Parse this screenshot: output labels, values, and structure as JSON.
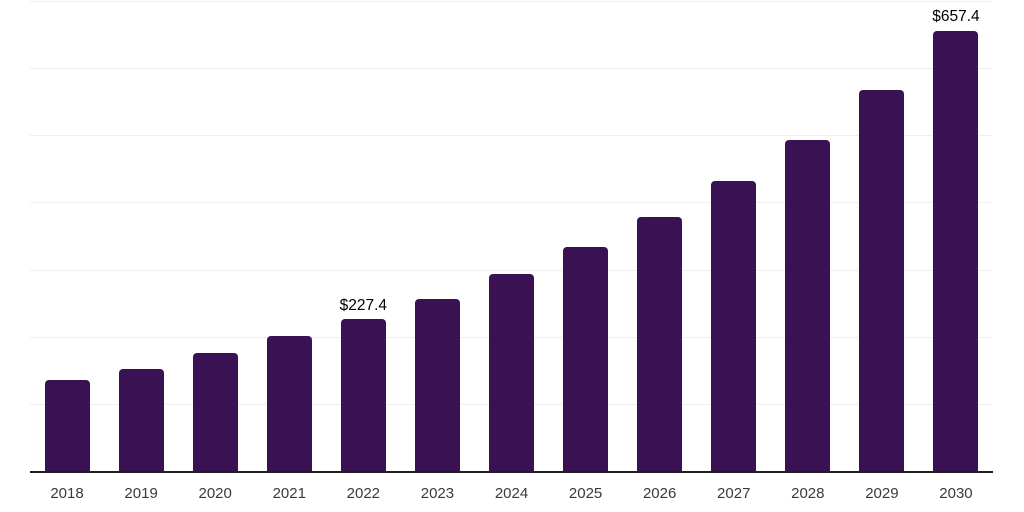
{
  "chart_data": {
    "type": "bar",
    "title": "",
    "xlabel": "",
    "ylabel": "",
    "categories": [
      "2018",
      "2019",
      "2020",
      "2021",
      "2022",
      "2023",
      "2024",
      "2025",
      "2026",
      "2027",
      "2028",
      "2029",
      "2030"
    ],
    "values": [
      136.4,
      154.2,
      177.5,
      202.7,
      227.4,
      257.9,
      294.7,
      334.7,
      379.2,
      433.8,
      494.6,
      568.6,
      657.4
    ],
    "data_labels": [
      {
        "category": "2022",
        "text": "$227.4"
      },
      {
        "category": "2030",
        "text": "$657.4"
      }
    ],
    "ylim": [
      0,
      700
    ],
    "gridline_step": 100,
    "grid": true,
    "legend": false,
    "colors": {
      "bar": "#3a1253",
      "gridline": "#efefef",
      "axis": "#1f1f1f",
      "tick_label": "#3a3a3a",
      "data_label": "#000000",
      "background": "#ffffff"
    }
  }
}
